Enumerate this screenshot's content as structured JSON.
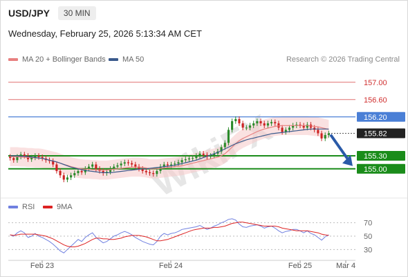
{
  "header": {
    "symbol": "USD/JPY",
    "timeframe": "30 MIN",
    "datetime": "Wednesday, February 25, 2026 5:13:34 AM CET"
  },
  "legend": {
    "ma20": "MA 20 + Bollinger Bands",
    "ma50": "MA 50",
    "rsi": "RSI",
    "ma9": "9MA"
  },
  "credit": "Research © 2026 Trading Central",
  "watermark": "WikiFX",
  "colors": {
    "ma20": "#e88080",
    "ma50": "#3a5a8c",
    "up": "#2a8a2a",
    "down": "#cc2222",
    "support": "#1a8c1a",
    "pivot": "#4a7fd6",
    "resistance": "#e07070",
    "rsi": "#7080e0",
    "rsi_ma": "#dd2222"
  },
  "chart_data": [
    {
      "type": "line",
      "title": "USD/JPY 30 MIN",
      "x_ticks": [
        "Feb 23",
        "Feb 24",
        "Feb 25",
        "Mar 4"
      ],
      "ylim": [
        154.5,
        157.3
      ],
      "levels": [
        {
          "value": 157.0,
          "label": "157.00",
          "kind": "resistance"
        },
        {
          "value": 156.6,
          "label": "156.60",
          "kind": "resistance"
        },
        {
          "value": 156.2,
          "label": "156.20",
          "kind": "pivot"
        },
        {
          "value": 155.82,
          "label": "155.82",
          "kind": "last"
        },
        {
          "value": 155.3,
          "label": "155.30",
          "kind": "support"
        },
        {
          "value": 155.0,
          "label": "155.00",
          "kind": "support"
        }
      ],
      "close": [
        155.25,
        155.2,
        155.28,
        155.33,
        155.3,
        155.22,
        155.26,
        155.3,
        155.27,
        155.24,
        155.2,
        155.18,
        155.1,
        154.95,
        154.85,
        154.75,
        154.8,
        154.85,
        154.9,
        154.95,
        154.92,
        155.0,
        155.05,
        155.1,
        155.0,
        154.95,
        154.9,
        154.93,
        155.0,
        155.05,
        155.08,
        155.12,
        155.15,
        155.13,
        155.1,
        155.05,
        155.0,
        154.95,
        154.92,
        154.9,
        154.88,
        154.95,
        155.05,
        155.1,
        155.08,
        155.1,
        155.12,
        155.15,
        155.2,
        155.22,
        155.24,
        155.25,
        155.3,
        155.35,
        155.32,
        155.28,
        155.3,
        155.35,
        155.4,
        155.5,
        155.6,
        155.9,
        156.1,
        156.15,
        156.05,
        155.95,
        155.95,
        156.0,
        156.05,
        156.1,
        156.05,
        156.0,
        156.05,
        156.08,
        156.05,
        155.95,
        155.85,
        155.9,
        155.95,
        156.0,
        156.02,
        156.0,
        155.95,
        156.02,
        155.95,
        155.9,
        155.82,
        155.7,
        155.78,
        155.82
      ],
      "ma20": [
        155.28,
        155.28,
        155.28,
        155.27,
        155.27,
        155.26,
        155.26,
        155.25,
        155.25,
        155.24,
        155.22,
        155.2,
        155.18,
        155.16,
        155.13,
        155.1,
        155.08,
        155.05,
        155.03,
        155.01,
        155.0,
        154.99,
        154.99,
        154.98,
        154.98,
        154.97,
        154.97,
        154.97,
        154.98,
        154.99,
        155.0,
        155.01,
        155.02,
        155.03,
        155.04,
        155.04,
        155.04,
        155.03,
        155.02,
        155.0,
        155.0,
        155.0,
        155.01,
        155.02,
        155.03,
        155.04,
        155.05,
        155.06,
        155.07,
        155.09,
        155.11,
        155.13,
        155.15,
        155.17,
        155.19,
        155.21,
        155.23,
        155.25,
        155.27,
        155.3,
        155.35,
        155.42,
        155.5,
        155.58,
        155.65,
        155.7,
        155.74,
        155.78,
        155.82,
        155.86,
        155.89,
        155.92,
        155.94,
        155.96,
        155.98,
        155.99,
        156.0,
        156.0,
        156.0,
        156.0,
        156.0,
        156.0,
        156.0,
        156.0,
        155.99,
        155.98,
        155.97,
        155.95,
        155.93,
        155.91
      ],
      "ma50": [
        155.3,
        155.3,
        155.3,
        155.29,
        155.29,
        155.28,
        155.27,
        155.26,
        155.25,
        155.24,
        155.22,
        155.2,
        155.18,
        155.16,
        155.13,
        155.1,
        155.07,
        155.04,
        155.02,
        155.0,
        154.98,
        154.96,
        154.95,
        154.94,
        154.93,
        154.92,
        154.91,
        154.91,
        154.91,
        154.92,
        154.93,
        154.94,
        154.95,
        154.96,
        154.97,
        154.98,
        154.99,
        155.0,
        155.0,
        155.01,
        155.02,
        155.03,
        155.04,
        155.05,
        155.06,
        155.07,
        155.08,
        155.1,
        155.12,
        155.14,
        155.16,
        155.18,
        155.2,
        155.23,
        155.26,
        155.29,
        155.32,
        155.35,
        155.38,
        155.42,
        155.46,
        155.5,
        155.54,
        155.58,
        155.61,
        155.64,
        155.67,
        155.69,
        155.71,
        155.73,
        155.75,
        155.77,
        155.79,
        155.81,
        155.82,
        155.83,
        155.84,
        155.85,
        155.86,
        155.87,
        155.88,
        155.89,
        155.9,
        155.91,
        155.92,
        155.92,
        155.92,
        155.92,
        155.92,
        155.92
      ],
      "forecast_from": 155.82,
      "forecast_to": 155.0
    },
    {
      "type": "line",
      "title": "RSI",
      "ylim": [
        20,
        80
      ],
      "y_ticks": [
        30,
        50,
        70
      ],
      "series": [
        {
          "name": "RSI",
          "values": [
            52,
            50,
            55,
            58,
            55,
            48,
            50,
            54,
            50,
            48,
            45,
            42,
            38,
            33,
            28,
            25,
            30,
            35,
            40,
            45,
            42,
            48,
            52,
            55,
            48,
            44,
            40,
            42,
            46,
            50,
            52,
            55,
            57,
            55,
            52,
            48,
            45,
            42,
            40,
            38,
            37,
            42,
            50,
            54,
            52,
            54,
            55,
            57,
            60,
            61,
            62,
            63,
            64,
            66,
            63,
            60,
            62,
            65,
            67,
            70,
            72,
            75,
            76,
            74,
            68,
            64,
            63,
            65,
            66,
            67,
            65,
            62,
            64,
            65,
            62,
            58,
            55,
            57,
            58,
            60,
            60,
            58,
            55,
            58,
            54,
            52,
            48,
            44,
            49,
            52
          ]
        },
        {
          "name": "9MA",
          "values": [
            52,
            51,
            52,
            53,
            53,
            53,
            53,
            53,
            52,
            51,
            50,
            48,
            46,
            43,
            40,
            37,
            35,
            34,
            34,
            35,
            37,
            39,
            42,
            45,
            47,
            47,
            46,
            46,
            45,
            45,
            46,
            47,
            49,
            50,
            51,
            51,
            51,
            50,
            49,
            47,
            45,
            43,
            43,
            44,
            45,
            47,
            49,
            51,
            53,
            55,
            57,
            59,
            60,
            61,
            62,
            62,
            62,
            63,
            63,
            64,
            65,
            67,
            69,
            70,
            71,
            71,
            70,
            69,
            68,
            67,
            66,
            65,
            65,
            65,
            65,
            64,
            62,
            61,
            60,
            59,
            58,
            58,
            58,
            58,
            57,
            56,
            55,
            53,
            52,
            51
          ]
        }
      ]
    }
  ]
}
